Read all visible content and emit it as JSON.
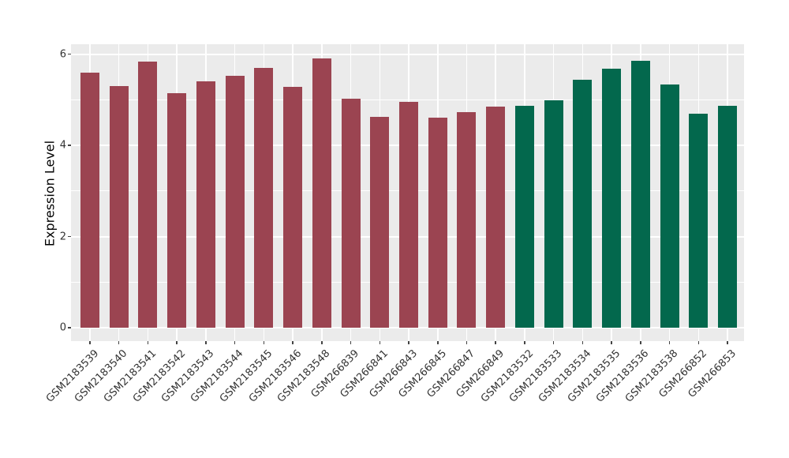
{
  "figure": {
    "background": "#FFFFFF",
    "panel_background": "#EBEBEB",
    "grid_color": "#FFFFFF",
    "axis_text_color": "#333333",
    "axis_title_color": "#000000"
  },
  "chart_data": {
    "type": "bar",
    "title": "",
    "xlabel": "",
    "ylabel": "Expression Level",
    "categories": [
      "GSM2183539",
      "GSM2183540",
      "GSM2183541",
      "GSM2183542",
      "GSM2183543",
      "GSM2183544",
      "GSM2183545",
      "GSM2183546",
      "GSM2183548",
      "GSM266839",
      "GSM266841",
      "GSM266843",
      "GSM266845",
      "GSM266847",
      "GSM266849",
      "GSM2183532",
      "GSM2183533",
      "GSM2183534",
      "GSM2183535",
      "GSM2183536",
      "GSM2183538",
      "GSM266852",
      "GSM266853"
    ],
    "values": [
      5.6,
      5.3,
      5.84,
      5.14,
      5.41,
      5.53,
      5.7,
      5.29,
      5.9,
      5.03,
      4.62,
      4.95,
      4.6,
      4.73,
      4.85,
      4.87,
      4.99,
      5.43,
      5.68,
      5.86,
      5.33,
      4.69,
      4.86
    ],
    "bar_groups": [
      "red",
      "red",
      "red",
      "red",
      "red",
      "red",
      "red",
      "red",
      "red",
      "red",
      "red",
      "red",
      "red",
      "red",
      "red",
      "green",
      "green",
      "green",
      "green",
      "green",
      "green",
      "green",
      "green"
    ],
    "group_colors": {
      "red": "#9B4451",
      "green": "#03684D"
    },
    "yticks": [
      0,
      2,
      4,
      6
    ],
    "ytick_labels": [
      "0",
      "2",
      "4",
      "6"
    ],
    "minor_yticks": [
      1,
      3,
      5
    ],
    "ylim": [
      0,
      6.2
    ],
    "x_tick_rotation_deg": 45,
    "grid": "white major horizontal lines at yticks, minor at odd values, vertical line at each category center",
    "legend_position": "none"
  }
}
